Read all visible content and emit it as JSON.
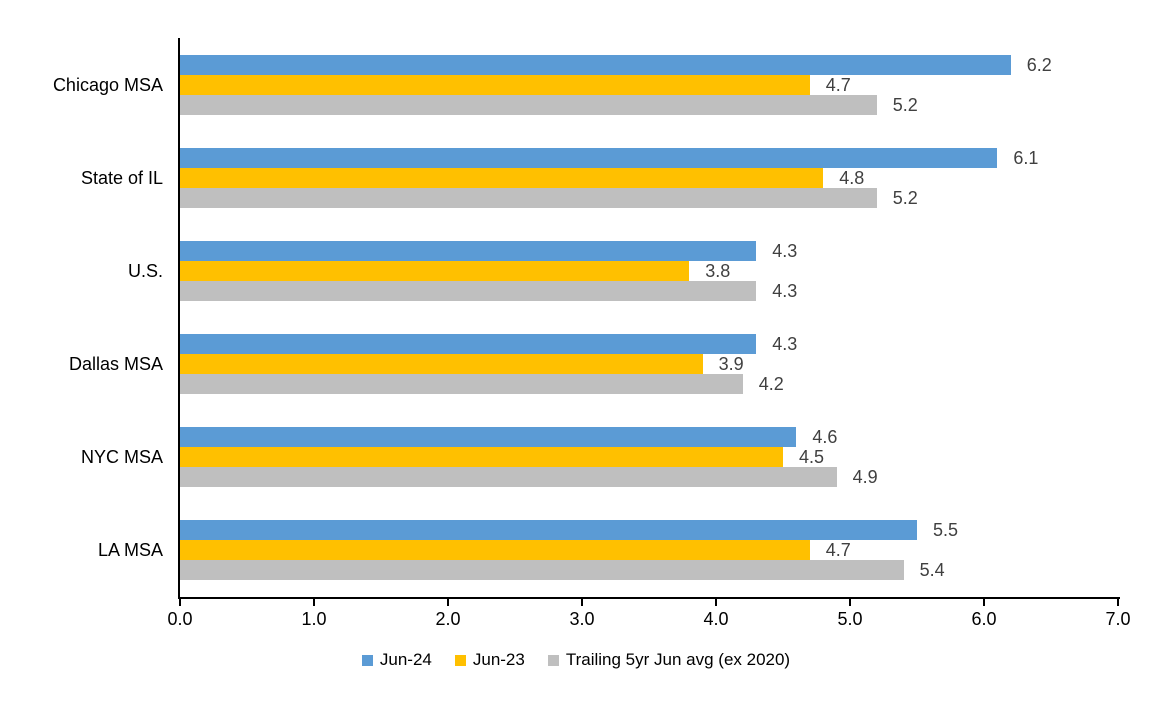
{
  "chart_data": {
    "type": "bar",
    "orientation": "horizontal",
    "title": "",
    "categories": [
      "Chicago MSA",
      "State of IL",
      "U.S.",
      "Dallas MSA",
      "NYC MSA",
      "LA MSA"
    ],
    "series": [
      {
        "name": "Jun-24",
        "color": "#5B9BD5",
        "values": [
          6.2,
          6.1,
          4.3,
          4.3,
          4.6,
          5.5
        ]
      },
      {
        "name": "Jun-23",
        "color": "#FFC000",
        "values": [
          4.7,
          4.8,
          3.8,
          3.9,
          4.5,
          4.7
        ]
      },
      {
        "name": "Trailing 5yr Jun avg (ex 2020)",
        "color": "#BFBFBF",
        "values": [
          5.2,
          5.2,
          4.3,
          4.2,
          4.9,
          5.4
        ]
      }
    ],
    "x_axis": {
      "min": 0,
      "max": 7,
      "step": 1,
      "tick_labels": [
        "0.0",
        "1.0",
        "2.0",
        "3.0",
        "4.0",
        "5.0",
        "6.0",
        "7.0"
      ]
    },
    "value_label_format": "0.1f",
    "value_label_color": "#404040",
    "axis_color": "#000000",
    "legend_position": "bottom",
    "grid": false,
    "background": "#FFFFFF"
  }
}
